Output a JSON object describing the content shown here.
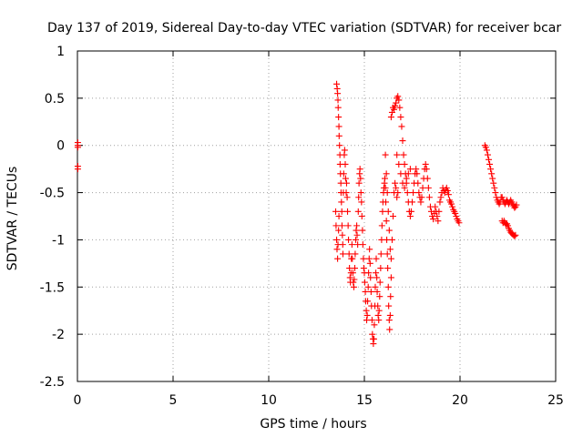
{
  "chart_data": {
    "type": "scatter",
    "title": "Day 137 of 2019, Sidereal Day-to-day VTEC variation (SDTVAR) for receiver bcar",
    "xlabel": "GPS time / hours",
    "ylabel": "SDTVAR / TECUs",
    "xlim": [
      0,
      25
    ],
    "ylim": [
      -2.5,
      1
    ],
    "xticks": [
      0,
      5,
      10,
      15,
      20,
      25
    ],
    "yticks": [
      1,
      0.5,
      0,
      -0.5,
      -1,
      -1.5,
      -2,
      -2.5
    ],
    "xtick_labels": [
      "0",
      "5",
      "10",
      "15",
      "20",
      "25"
    ],
    "ytick_labels": [
      "1",
      "0.5",
      "0",
      "-0.5",
      "-1",
      "-1.5",
      "-2",
      "-2.5"
    ],
    "grid": true,
    "marker": "+",
    "color": "#ff0000",
    "series": [
      {
        "name": "SDTVAR",
        "points": [
          [
            0.02,
            0.03
          ],
          [
            0.02,
            0.0
          ],
          [
            0.02,
            -0.02
          ],
          [
            0.02,
            -0.22
          ],
          [
            0.02,
            -0.25
          ],
          [
            13.55,
            0.65
          ],
          [
            13.58,
            0.6
          ],
          [
            13.6,
            0.55
          ],
          [
            13.62,
            0.48
          ],
          [
            13.63,
            0.4
          ],
          [
            13.65,
            0.3
          ],
          [
            13.67,
            0.2
          ],
          [
            13.68,
            0.1
          ],
          [
            13.7,
            0.0
          ],
          [
            13.72,
            -0.1
          ],
          [
            13.73,
            -0.2
          ],
          [
            13.75,
            -0.3
          ],
          [
            13.77,
            -0.4
          ],
          [
            13.78,
            -0.5
          ],
          [
            13.8,
            -0.6
          ],
          [
            13.82,
            -0.7
          ],
          [
            13.83,
            -0.85
          ],
          [
            13.85,
            -0.95
          ],
          [
            13.87,
            -1.05
          ],
          [
            13.88,
            -1.15
          ],
          [
            13.5,
            -0.7
          ],
          [
            13.52,
            -0.85
          ],
          [
            13.55,
            -1.0
          ],
          [
            13.57,
            -1.1
          ],
          [
            13.6,
            -1.2
          ],
          [
            13.62,
            -1.05
          ],
          [
            13.65,
            -0.9
          ],
          [
            13.67,
            -0.75
          ],
          [
            13.9,
            -0.5
          ],
          [
            13.92,
            -0.3
          ],
          [
            13.95,
            -0.1
          ],
          [
            13.97,
            -0.05
          ],
          [
            14.0,
            -0.2
          ],
          [
            14.02,
            -0.35
          ],
          [
            14.05,
            -0.5
          ],
          [
            14.07,
            -0.4
          ],
          [
            14.1,
            -0.55
          ],
          [
            14.12,
            -0.7
          ],
          [
            14.15,
            -0.85
          ],
          [
            14.17,
            -1.0
          ],
          [
            14.2,
            -1.15
          ],
          [
            14.22,
            -1.3
          ],
          [
            14.25,
            -1.4
          ],
          [
            14.27,
            -1.45
          ],
          [
            14.3,
            -1.35
          ],
          [
            14.32,
            -1.2
          ],
          [
            14.35,
            -1.05
          ],
          [
            14.37,
            -1.2
          ],
          [
            14.4,
            -1.35
          ],
          [
            14.42,
            -1.45
          ],
          [
            14.45,
            -1.5
          ],
          [
            14.47,
            -1.42
          ],
          [
            14.5,
            -1.3
          ],
          [
            14.52,
            -1.15
          ],
          [
            14.55,
            -1.0
          ],
          [
            14.57,
            -0.9
          ],
          [
            14.6,
            -0.85
          ],
          [
            14.62,
            -0.95
          ],
          [
            14.65,
            -1.05
          ],
          [
            14.68,
            -0.7
          ],
          [
            14.7,
            -0.55
          ],
          [
            14.72,
            -0.4
          ],
          [
            14.75,
            -0.3
          ],
          [
            14.77,
            -0.25
          ],
          [
            14.8,
            -0.35
          ],
          [
            14.82,
            -0.5
          ],
          [
            14.85,
            -0.6
          ],
          [
            14.87,
            -0.75
          ],
          [
            14.9,
            -0.9
          ],
          [
            14.92,
            -1.05
          ],
          [
            14.95,
            -1.2
          ],
          [
            14.97,
            -1.3
          ],
          [
            15.0,
            -1.35
          ],
          [
            15.02,
            -1.45
          ],
          [
            15.05,
            -1.55
          ],
          [
            15.07,
            -1.65
          ],
          [
            15.1,
            -1.75
          ],
          [
            15.12,
            -1.85
          ],
          [
            15.15,
            -1.8
          ],
          [
            15.17,
            -1.65
          ],
          [
            15.2,
            -1.5
          ],
          [
            15.22,
            -1.35
          ],
          [
            15.25,
            -1.2
          ],
          [
            15.27,
            -1.1
          ],
          [
            15.3,
            -1.25
          ],
          [
            15.32,
            -1.4
          ],
          [
            15.35,
            -1.55
          ],
          [
            15.37,
            -1.7
          ],
          [
            15.4,
            -1.85
          ],
          [
            15.42,
            -2.0
          ],
          [
            15.45,
            -2.05
          ],
          [
            15.47,
            -2.1
          ],
          [
            15.5,
            -2.05
          ],
          [
            15.52,
            -1.9
          ],
          [
            15.55,
            -1.7
          ],
          [
            15.57,
            -1.5
          ],
          [
            15.6,
            -1.35
          ],
          [
            15.62,
            -1.2
          ],
          [
            15.65,
            -1.4
          ],
          [
            15.67,
            -1.55
          ],
          [
            15.7,
            -1.7
          ],
          [
            15.72,
            -1.8
          ],
          [
            15.75,
            -1.85
          ],
          [
            15.77,
            -1.75
          ],
          [
            15.8,
            -1.6
          ],
          [
            15.82,
            -1.45
          ],
          [
            15.85,
            -1.3
          ],
          [
            15.87,
            -1.15
          ],
          [
            15.9,
            -1.0
          ],
          [
            15.92,
            -0.85
          ],
          [
            15.95,
            -0.7
          ],
          [
            15.97,
            -0.6
          ],
          [
            16.0,
            -0.5
          ],
          [
            16.02,
            -0.45
          ],
          [
            16.05,
            -0.4
          ],
          [
            16.07,
            -0.35
          ],
          [
            16.1,
            -0.45
          ],
          [
            16.12,
            -0.6
          ],
          [
            16.15,
            -0.8
          ],
          [
            16.17,
            -1.0
          ],
          [
            16.2,
            -1.15
          ],
          [
            16.22,
            -1.3
          ],
          [
            16.25,
            -1.5
          ],
          [
            16.27,
            -1.7
          ],
          [
            16.3,
            -1.85
          ],
          [
            16.32,
            -1.95
          ],
          [
            16.35,
            -1.8
          ],
          [
            16.37,
            -1.6
          ],
          [
            16.4,
            -1.4
          ],
          [
            16.1,
            -0.1
          ],
          [
            16.15,
            -0.3
          ],
          [
            16.2,
            -0.5
          ],
          [
            16.25,
            -0.7
          ],
          [
            16.3,
            -0.9
          ],
          [
            16.35,
            -1.1
          ],
          [
            16.4,
            -1.2
          ],
          [
            16.45,
            -1.0
          ],
          [
            16.5,
            -0.75
          ],
          [
            16.55,
            -0.5
          ],
          [
            16.6,
            -0.4
          ],
          [
            16.65,
            -0.45
          ],
          [
            16.7,
            -0.55
          ],
          [
            16.75,
            -0.5
          ],
          [
            16.4,
            0.3
          ],
          [
            16.45,
            0.35
          ],
          [
            16.5,
            0.4
          ],
          [
            16.55,
            0.38
          ],
          [
            16.6,
            0.42
          ],
          [
            16.65,
            0.45
          ],
          [
            16.7,
            0.5
          ],
          [
            16.75,
            0.52
          ],
          [
            16.8,
            0.48
          ],
          [
            16.85,
            0.4
          ],
          [
            16.9,
            0.3
          ],
          [
            16.95,
            0.2
          ],
          [
            17.0,
            0.05
          ],
          [
            17.05,
            -0.1
          ],
          [
            17.1,
            -0.2
          ],
          [
            17.15,
            -0.3
          ],
          [
            17.2,
            -0.4
          ],
          [
            17.25,
            -0.5
          ],
          [
            17.3,
            -0.6
          ],
          [
            17.35,
            -0.7
          ],
          [
            17.4,
            -0.75
          ],
          [
            17.45,
            -0.7
          ],
          [
            17.5,
            -0.6
          ],
          [
            17.55,
            -0.5
          ],
          [
            17.6,
            -0.4
          ],
          [
            17.65,
            -0.3
          ],
          [
            17.7,
            -0.25
          ],
          [
            17.75,
            -0.3
          ],
          [
            17.8,
            -0.4
          ],
          [
            17.85,
            -0.5
          ],
          [
            17.9,
            -0.55
          ],
          [
            17.95,
            -0.6
          ],
          [
            18.0,
            -0.55
          ],
          [
            18.05,
            -0.45
          ],
          [
            18.1,
            -0.35
          ],
          [
            18.15,
            -0.25
          ],
          [
            18.2,
            -0.2
          ],
          [
            18.25,
            -0.25
          ],
          [
            18.3,
            -0.35
          ],
          [
            18.35,
            -0.45
          ],
          [
            18.4,
            -0.55
          ],
          [
            18.45,
            -0.65
          ],
          [
            18.5,
            -0.7
          ],
          [
            18.55,
            -0.75
          ],
          [
            18.6,
            -0.78
          ],
          [
            18.65,
            -0.72
          ],
          [
            18.7,
            -0.65
          ],
          [
            18.75,
            -0.7
          ],
          [
            18.8,
            -0.75
          ],
          [
            18.85,
            -0.8
          ],
          [
            18.9,
            -0.7
          ],
          [
            18.95,
            -0.6
          ],
          [
            19.0,
            -0.55
          ],
          [
            19.05,
            -0.5
          ],
          [
            19.1,
            -0.45
          ],
          [
            19.15,
            -0.48
          ],
          [
            19.2,
            -0.5
          ],
          [
            19.25,
            -0.47
          ],
          [
            19.3,
            -0.45
          ],
          [
            19.35,
            -0.48
          ],
          [
            19.4,
            -0.52
          ],
          [
            19.45,
            -0.58
          ],
          [
            19.5,
            -0.6
          ],
          [
            19.55,
            -0.62
          ],
          [
            19.6,
            -0.65
          ],
          [
            19.65,
            -0.68
          ],
          [
            19.7,
            -0.7
          ],
          [
            19.75,
            -0.72
          ],
          [
            19.8,
            -0.75
          ],
          [
            19.85,
            -0.78
          ],
          [
            19.9,
            -0.8
          ],
          [
            19.95,
            -0.82
          ],
          [
            17.0,
            -0.4
          ],
          [
            17.1,
            -0.45
          ],
          [
            17.2,
            -0.35
          ],
          [
            17.3,
            -0.3
          ],
          [
            17.4,
            -0.25
          ],
          [
            16.9,
            -0.3
          ],
          [
            16.8,
            -0.2
          ],
          [
            16.7,
            -0.1
          ],
          [
            21.3,
            0.0
          ],
          [
            21.35,
            -0.02
          ],
          [
            21.4,
            -0.05
          ],
          [
            21.45,
            -0.1
          ],
          [
            21.5,
            -0.15
          ],
          [
            21.55,
            -0.2
          ],
          [
            21.6,
            -0.25
          ],
          [
            21.65,
            -0.3
          ],
          [
            21.7,
            -0.35
          ],
          [
            21.75,
            -0.4
          ],
          [
            21.8,
            -0.45
          ],
          [
            21.85,
            -0.5
          ],
          [
            21.9,
            -0.55
          ],
          [
            21.95,
            -0.58
          ],
          [
            22.0,
            -0.6
          ],
          [
            22.05,
            -0.62
          ],
          [
            22.1,
            -0.6
          ],
          [
            22.15,
            -0.55
          ],
          [
            22.2,
            -0.55
          ],
          [
            22.25,
            -0.58
          ],
          [
            22.3,
            -0.6
          ],
          [
            22.35,
            -0.62
          ],
          [
            22.4,
            -0.6
          ],
          [
            22.45,
            -0.58
          ],
          [
            22.5,
            -0.6
          ],
          [
            22.55,
            -0.62
          ],
          [
            22.6,
            -0.6
          ],
          [
            22.65,
            -0.58
          ],
          [
            22.7,
            -0.6
          ],
          [
            22.75,
            -0.62
          ],
          [
            22.8,
            -0.64
          ],
          [
            22.85,
            -0.66
          ],
          [
            22.9,
            -0.65
          ],
          [
            22.95,
            -0.63
          ],
          [
            22.2,
            -0.8
          ],
          [
            22.25,
            -0.82
          ],
          [
            22.3,
            -0.8
          ],
          [
            22.35,
            -0.82
          ],
          [
            22.4,
            -0.84
          ],
          [
            22.45,
            -0.83
          ],
          [
            22.5,
            -0.85
          ],
          [
            22.55,
            -0.88
          ],
          [
            22.6,
            -0.9
          ],
          [
            22.65,
            -0.92
          ],
          [
            22.7,
            -0.93
          ],
          [
            22.75,
            -0.94
          ],
          [
            22.8,
            -0.95
          ],
          [
            22.85,
            -0.96
          ],
          [
            22.9,
            -0.95
          ]
        ]
      }
    ]
  }
}
